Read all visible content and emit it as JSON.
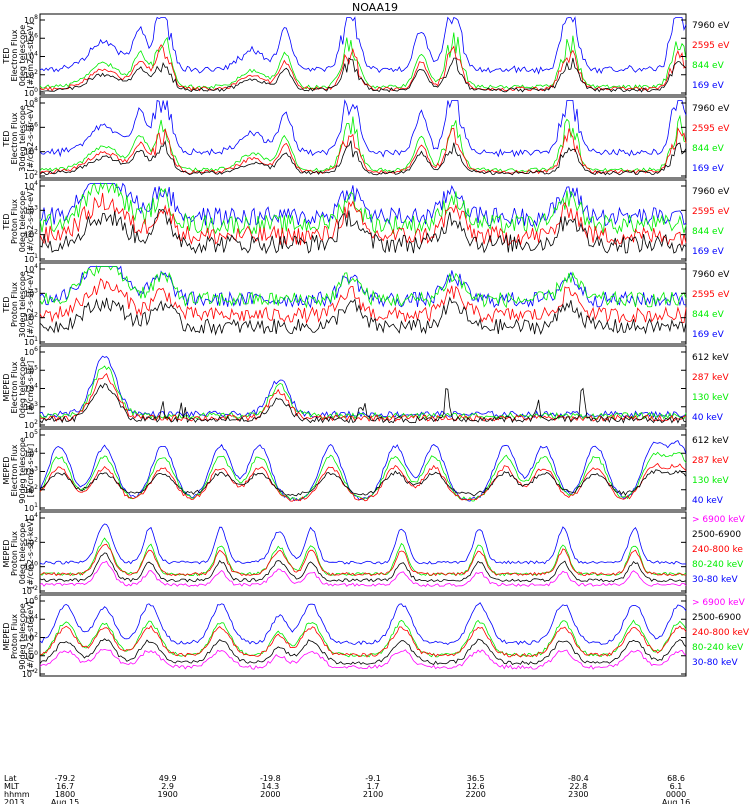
{
  "title": "NOAA19",
  "colors": {
    "blue": "#0000ff",
    "red": "#ff0000",
    "green": "#00ee00",
    "black": "#000000",
    "magenta": "#ff00ff"
  },
  "chart_data": {
    "type": "line",
    "x_range": [
      "2013-08-15 17:45",
      "2013-08-16 00:05"
    ],
    "panels": [
      {
        "instrument": "TED",
        "ylabel": [
          "Electron Flux",
          "0deg telescope",
          "[#/cm2-s-str-eV]"
        ],
        "tick_exponents": [
          0,
          2,
          4,
          6,
          8
        ],
        "legend": [
          {
            "label": "7960 eV",
            "color": "black"
          },
          {
            "label": "2595 eV",
            "color": "red"
          },
          {
            "label": "844 eV",
            "color": "green"
          },
          {
            "label": "169 eV",
            "color": "blue"
          }
        ],
        "style": "electron"
      },
      {
        "instrument": "TED",
        "ylabel": [
          "Electron Flux",
          "30deg telescope",
          "[#/cm2-s-str-eV]"
        ],
        "tick_exponents": [
          2,
          4,
          6,
          8
        ],
        "legend": [
          {
            "label": "7960 eV",
            "color": "black"
          },
          {
            "label": "2595 eV",
            "color": "red"
          },
          {
            "label": "844 eV",
            "color": "green"
          },
          {
            "label": "169 eV",
            "color": "blue"
          }
        ],
        "style": "electron"
      },
      {
        "instrument": "TED",
        "ylabel": [
          "Proton Flux",
          "0deg telescope",
          "[#/cm2-s-str-eV]"
        ],
        "tick_exponents": [
          1,
          2,
          3,
          4
        ],
        "legend": [
          {
            "label": "7960 eV",
            "color": "black"
          },
          {
            "label": "2595 eV",
            "color": "red"
          },
          {
            "label": "844 eV",
            "color": "green"
          },
          {
            "label": "169 eV",
            "color": "blue"
          }
        ],
        "style": "proton_ted_0"
      },
      {
        "instrument": "TED",
        "ylabel": [
          "Proton Flux",
          "30deg telescope",
          "[#/cm2-s-str-eV]"
        ],
        "tick_exponents": [
          1,
          2,
          3,
          4
        ],
        "legend": [
          {
            "label": "7960 eV",
            "color": "black"
          },
          {
            "label": "2595 eV",
            "color": "red"
          },
          {
            "label": "844 eV",
            "color": "green"
          },
          {
            "label": "169 eV",
            "color": "blue"
          }
        ],
        "style": "proton_ted_30"
      },
      {
        "instrument": "MEPED",
        "ylabel": [
          "Electron Flux",
          "0deg telescope",
          "[#/cm2-s-str]"
        ],
        "tick_exponents": [
          2,
          3,
          4,
          5,
          6
        ],
        "legend": [
          {
            "label": "612 keV",
            "color": "black"
          },
          {
            "label": "287 keV",
            "color": "red"
          },
          {
            "label": "130 keV",
            "color": "green"
          },
          {
            "label": "40 keV",
            "color": "blue"
          }
        ],
        "style": "meped_e0"
      },
      {
        "instrument": "MEPED",
        "ylabel": [
          "Electron Flux",
          "90deg telescope",
          "[#/cm2-s-str]"
        ],
        "tick_exponents": [
          1,
          2,
          3,
          4,
          5
        ],
        "legend": [
          {
            "label": "612 keV",
            "color": "black"
          },
          {
            "label": "287 keV",
            "color": "red"
          },
          {
            "label": "130 keV",
            "color": "green"
          },
          {
            "label": "40 keV",
            "color": "blue"
          }
        ],
        "style": "meped_e90"
      },
      {
        "instrument": "MEPED",
        "ylabel": [
          "Proton Flux",
          "0deg telescope",
          "[#/cm2-s-str-keV]"
        ],
        "tick_exponents": [
          -2,
          0,
          2,
          4
        ],
        "legend": [
          {
            "label": "> 6900 keV",
            "color": "magenta"
          },
          {
            "label": "2500-6900",
            "color": "black"
          },
          {
            "label": "240-800 ke",
            "color": "red"
          },
          {
            "label": "80-240 keV",
            "color": "green"
          },
          {
            "label": "30-80 keV",
            "color": "blue"
          }
        ],
        "style": "meped_p0"
      },
      {
        "instrument": "MEPED",
        "ylabel": [
          "Proton Flux",
          "90deg telescope",
          "[#/cm2-s-str-keV]"
        ],
        "tick_exponents": [
          -2,
          0,
          2,
          4,
          6
        ],
        "legend": [
          {
            "label": "> 6900 keV",
            "color": "magenta"
          },
          {
            "label": "2500-6900",
            "color": "black"
          },
          {
            "label": "240-800 keV",
            "color": "red"
          },
          {
            "label": "80-240 keV",
            "color": "green"
          },
          {
            "label": "30-80 keV",
            "color": "blue"
          }
        ],
        "style": "meped_p90"
      }
    ],
    "axis_rows": {
      "labels": [
        "Lat",
        "MLT",
        "hhmm",
        "2013"
      ],
      "columns": [
        {
          "lat": "-79.2",
          "mlt": "16.7",
          "hhmm": "1800",
          "date": "Aug 15"
        },
        {
          "lat": "49.9",
          "mlt": "2.9",
          "hhmm": "1900",
          "date": ""
        },
        {
          "lat": "-19.8",
          "mlt": "14.3",
          "hhmm": "2000",
          "date": ""
        },
        {
          "lat": "-9.1",
          "mlt": "1.7",
          "hhmm": "2100",
          "date": ""
        },
        {
          "lat": "36.5",
          "mlt": "12.6",
          "hhmm": "2200",
          "date": ""
        },
        {
          "lat": "-80.4",
          "mlt": "22.8",
          "hhmm": "2300",
          "date": ""
        },
        {
          "lat": "68.6",
          "mlt": "6.1",
          "hhmm": "0000",
          "date": "Aug 16"
        }
      ]
    }
  }
}
